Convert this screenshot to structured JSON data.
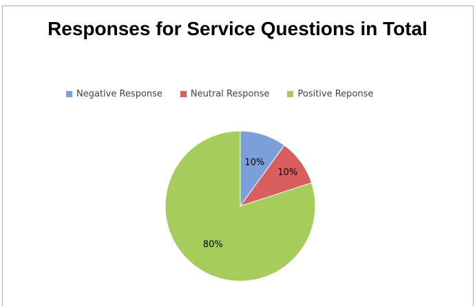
{
  "chart_data": {
    "type": "pie",
    "title": "Responses for Service Questions in Total",
    "categories": [
      "Negative Response",
      "Neutral Response",
      "Positive Reponse"
    ],
    "values": [
      10,
      10,
      80
    ],
    "data_labels": [
      "10%",
      "10%",
      "80%"
    ],
    "colors": [
      "#7b9fd9",
      "#d95f5f",
      "#a6cc5c"
    ],
    "legend_placement": "top"
  }
}
